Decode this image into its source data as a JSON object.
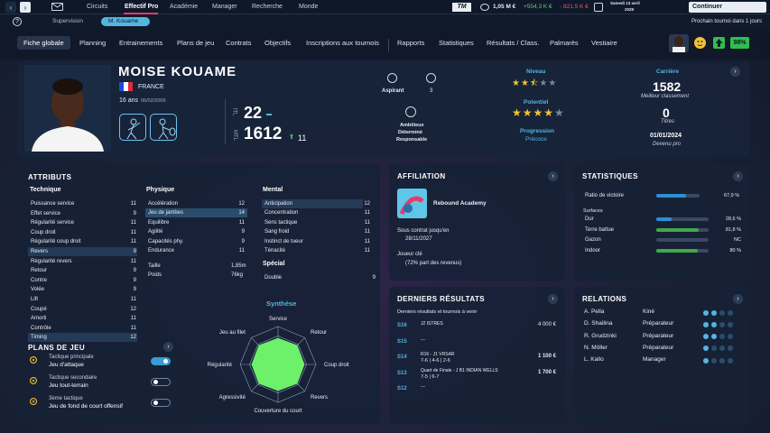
{
  "topbar": {
    "nav": [
      "Circuits",
      "Effectif Pro",
      "Académie",
      "Manager",
      "Recherche",
      "Monde"
    ],
    "money": "1,05 M €",
    "gain": "+554,3 K €",
    "loss": "- 821,5 K €",
    "date_line1": "Samedi 13 avril",
    "date_line2": "2029",
    "continue": "Continuer",
    "next_tournament": "Prochain tournoi dans 1 jours",
    "logo": "TM"
  },
  "subnav": [
    "Supervision",
    "M. Kouame"
  ],
  "tabs": [
    "Fiche globale",
    "Planning",
    "Entrainements",
    "Plans de jeu",
    "Contrats",
    "Objectifs",
    "Inscriptions aux tournois",
    "Rapports",
    "Statistiques",
    "Résultats / Class.",
    "Palmarès",
    "Vestiaire"
  ],
  "morale": "98%",
  "player": {
    "name": "MOISE KOUAME",
    "country": "FRANCE",
    "age": "16 ans",
    "birth": "06/02/2009",
    "itl_label": "ITL",
    "itl_value": "22",
    "mtl_label": "MTL",
    "mtl_value": "1612",
    "mtl_delta": "11",
    "aspirant": "Aspirant",
    "aspirant_count": "3",
    "traits": [
      "Ambitieux",
      "Déterminé",
      "Responsable"
    ],
    "niveau_label": "Niveau",
    "niveau_stars": 2.5,
    "potentiel_label": "Potentiel",
    "potentiel_stars": 4,
    "progression_label": "Progression",
    "progression_value": "Précoce",
    "carriere_label": "Carrière",
    "best_rank": "1582",
    "best_rank_label": "Meilleur classement",
    "titles": "0",
    "titles_label": "Titres",
    "pro_date": "01/01/2024",
    "pro_label": "Devenu pro"
  },
  "attributes": {
    "title": "ATTRIBUTS",
    "technique_label": "Technique",
    "technique": [
      [
        "Puissance service",
        "11"
      ],
      [
        "Effet service",
        "9"
      ],
      [
        "Régularité service",
        "11"
      ],
      [
        "Coup droit",
        "11"
      ],
      [
        "Régularité coup droit",
        "11"
      ],
      [
        "Revers",
        "9"
      ],
      [
        "Régularité revers",
        "11"
      ],
      [
        "Retour",
        "9"
      ],
      [
        "Contre",
        "9"
      ],
      [
        "Volée",
        "9"
      ],
      [
        "Lift",
        "11"
      ],
      [
        "Coupé",
        "12"
      ],
      [
        "Amorti",
        "11"
      ],
      [
        "Contrôle",
        "11"
      ],
      [
        "Timing",
        "12"
      ]
    ],
    "physique_label": "Physique",
    "physique": [
      [
        "Accélération",
        "12"
      ],
      [
        "Jeu de jambes",
        "14"
      ],
      [
        "Equilibre",
        "11"
      ],
      [
        "Agilité",
        "9"
      ],
      [
        "Capacités phy.",
        "9"
      ],
      [
        "Endurance",
        "11"
      ]
    ],
    "physique_extra": [
      [
        "Taille",
        "1,85m"
      ],
      [
        "Poids",
        "76kg"
      ]
    ],
    "mental_label": "Mental",
    "mental": [
      [
        "Anticipation",
        "12"
      ],
      [
        "Concentration",
        "11"
      ],
      [
        "Sens tactique",
        "11"
      ],
      [
        "Sang froid",
        "11"
      ],
      [
        "Instinct de tueur",
        "11"
      ],
      [
        "Ténacité",
        "11"
      ]
    ],
    "special_label": "Spécial",
    "special": [
      [
        "Double",
        "9"
      ]
    ]
  },
  "plans": {
    "title": "PLANS DE JEU",
    "items": [
      {
        "l1": "Tactique principale",
        "l2": "Jeu d'attaque",
        "on": true
      },
      {
        "l1": "Tactique secondaire",
        "l2": "Jeu tout-terrain",
        "on": false
      },
      {
        "l1": "3ème tactique",
        "l2": "Jeu de fond de court offensif",
        "on": false
      }
    ]
  },
  "synthese": {
    "title": "Synthèse",
    "axes": [
      "Service",
      "Retour",
      "Coup droit",
      "Revers",
      "Couverture du court",
      "Agressivité",
      "Régularité",
      "Jeu au filet"
    ],
    "values": [
      0.7,
      0.72,
      0.7,
      0.72,
      0.7,
      0.72,
      0.7,
      0.72
    ]
  },
  "affiliation": {
    "title": "AFFILIATION",
    "academy": "Rebound Academy",
    "contract_l1": "Sous contrat jusqu'en",
    "contract_l2": "28/11/2027",
    "key_l1": "Joueur clé",
    "key_l2": "(72% part des revenus)"
  },
  "statistiques": {
    "title": "STATISTIQUES",
    "ratio_label": "Ratio de victoire",
    "ratio_value": "67,9 %",
    "ratio": 67.9,
    "surfaces_label": "Surfaces",
    "surfaces": [
      {
        "name": "Dur",
        "value": "28,6 %",
        "pct": 28.6
      },
      {
        "name": "Terre battue",
        "value": "81,8 %",
        "pct": 81.8
      },
      {
        "name": "Gazon",
        "value": "NC",
        "pct": 0
      },
      {
        "name": "Indoor",
        "value": "80 %",
        "pct": 80
      }
    ]
  },
  "results": {
    "title": "DERNIERS RÉSULTATS",
    "subtitle": "Derniers résultats et tournois à venir",
    "items": [
      {
        "week": "S16",
        "line1": "J2 ISTRES",
        "line2": "",
        "prize": "4 000 €"
      },
      {
        "week": "S15",
        "line1": "---",
        "line2": "",
        "prize": ""
      },
      {
        "week": "S14",
        "line1": "R16 - J1 VRSAR",
        "line2": "7-6 | 4-6 | 2-6",
        "prize": "1 100 €"
      },
      {
        "week": "S13",
        "line1": "Quart de Finale - J B1 INDIAN WELLS",
        "line2": "7-5 | 6-7",
        "prize": "1 700 €"
      },
      {
        "week": "S12",
        "line1": "---",
        "line2": "",
        "prize": ""
      }
    ]
  },
  "relations": {
    "title": "RELATIONS",
    "items": [
      {
        "name": "A. Pella",
        "role": "Kiné",
        "level": 2
      },
      {
        "name": "D. Shailina",
        "role": "Préparateur",
        "level": 2
      },
      {
        "name": "R. Grudzinki",
        "role": "Préparateur",
        "level": 2
      },
      {
        "name": "N. Möller",
        "role": "Préparateur",
        "level": 1
      },
      {
        "name": "L. Kallo",
        "role": "Manager",
        "level": 1
      }
    ]
  },
  "colors": {
    "accent": "#54b5e0",
    "green": "#2fbf4f",
    "radar": "#6df06a",
    "bar_blue": "#2f8ed0",
    "bar_green": "#3fa84a"
  }
}
